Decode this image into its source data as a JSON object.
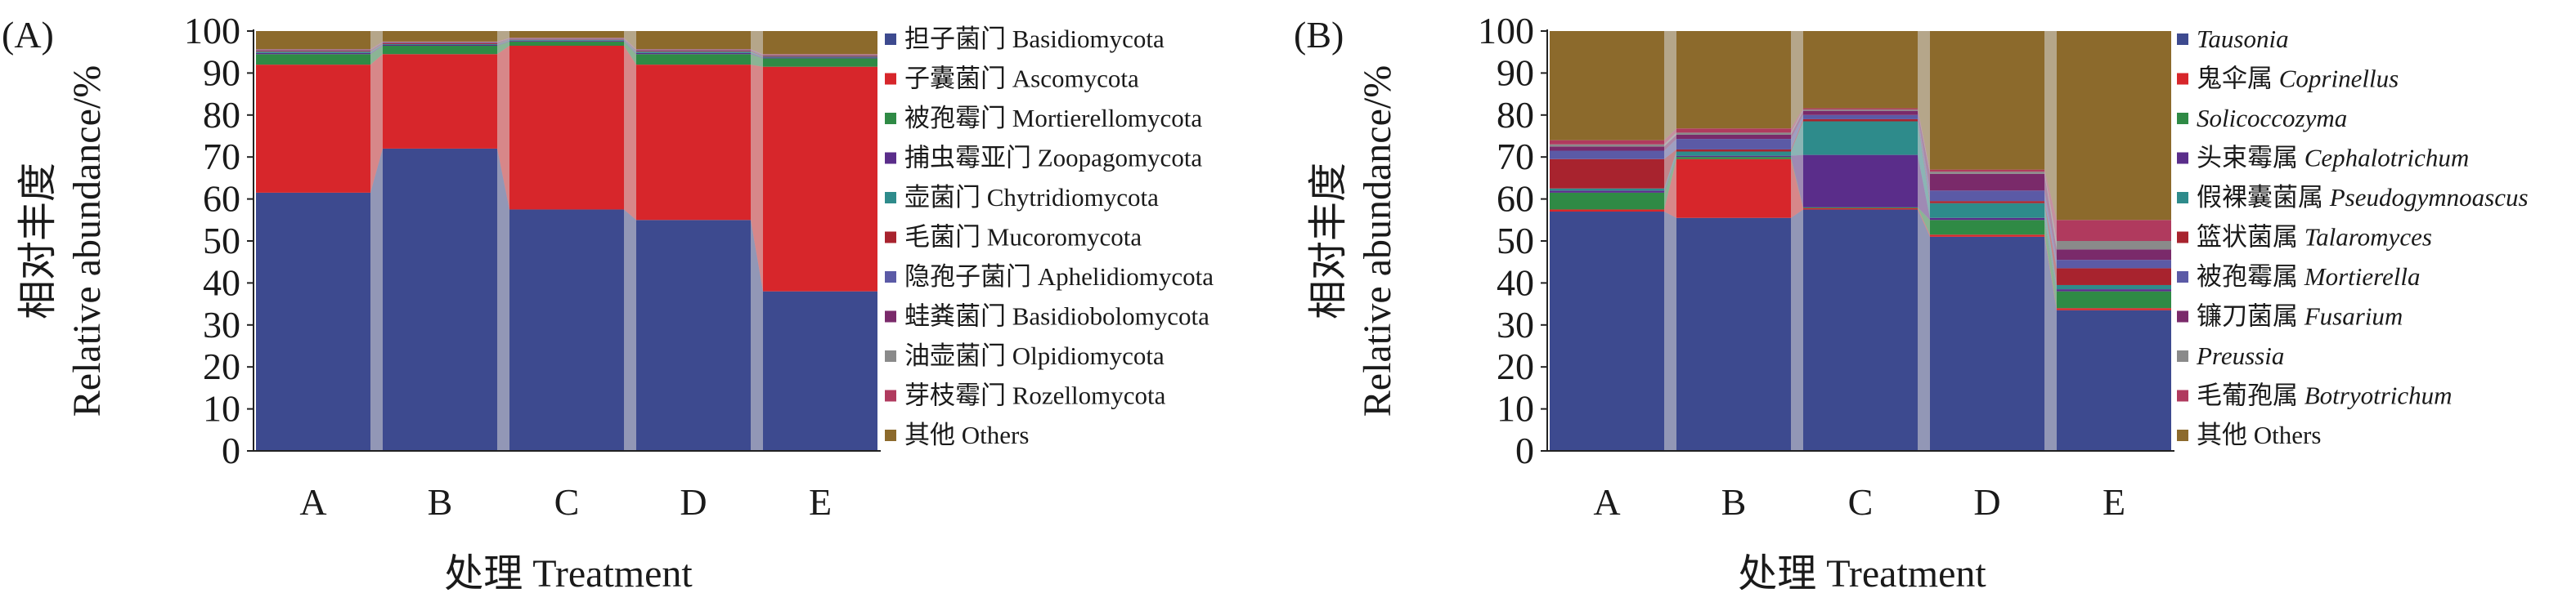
{
  "chart_data": [
    {
      "type": "bar",
      "stacked": true,
      "panel_label": "(A)",
      "title": "",
      "xlabel": "处理 Treatment",
      "ylabel_cn": "相对丰度",
      "ylabel_en": "Relative abundance/%",
      "ylim": [
        0,
        100
      ],
      "yticks": [
        0,
        10,
        20,
        30,
        40,
        50,
        60,
        70,
        80,
        90,
        100
      ],
      "categories": [
        "A",
        "B",
        "C",
        "D",
        "E"
      ],
      "legend_position": "right",
      "series": [
        {
          "cn": "担子菌门",
          "en": "Basidiomycota",
          "italic": false,
          "color": "#3d4a8f",
          "values": [
            61.5,
            72,
            57.5,
            55,
            38
          ]
        },
        {
          "cn": "子囊菌门",
          "en": "Ascomycota",
          "italic": false,
          "color": "#d7262b",
          "values": [
            30.5,
            22.5,
            39,
            37,
            53.5
          ]
        },
        {
          "cn": "被孢霉门",
          "en": "Mortierellomycota",
          "italic": false,
          "color": "#2f8a45",
          "values": [
            2.5,
            2,
            1,
            2.5,
            2
          ]
        },
        {
          "cn": "捕虫霉亚门",
          "en": "Zoopagomycota",
          "italic": false,
          "color": "#5a2d8a",
          "values": [
            0.3,
            0.2,
            0.2,
            0.3,
            0.2
          ]
        },
        {
          "cn": "壶菌门",
          "en": "Chytridiomycota",
          "italic": false,
          "color": "#2e8b8b",
          "values": [
            0.3,
            0.2,
            0.2,
            0.3,
            0.2
          ]
        },
        {
          "cn": "毛菌门",
          "en": "Mucoromycota",
          "italic": false,
          "color": "#a8232e",
          "values": [
            0.2,
            0.2,
            0.1,
            0.2,
            0.2
          ]
        },
        {
          "cn": "隐孢子菌门",
          "en": "Aphelidiomycota",
          "italic": false,
          "color": "#5b5aa6",
          "values": [
            0.1,
            0.1,
            0.1,
            0.1,
            0.1
          ]
        },
        {
          "cn": "蛙粪菌门",
          "en": "Basidiobolomycota",
          "italic": false,
          "color": "#7a2a6a",
          "values": [
            0.1,
            0.1,
            0.1,
            0.1,
            0.1
          ]
        },
        {
          "cn": "油壶菌门",
          "en": "Olpidiomycota",
          "italic": false,
          "color": "#8a8a8a",
          "values": [
            0.1,
            0.1,
            0.1,
            0.1,
            0.1
          ]
        },
        {
          "cn": "芽枝霉门",
          "en": "Rozellomycota",
          "italic": false,
          "color": "#b03a5e",
          "values": [
            0.1,
            0.1,
            0.1,
            0.1,
            0.1
          ]
        },
        {
          "cn": "其他",
          "en": "Others",
          "italic": false,
          "color": "#8c6a2c",
          "values": [
            4.3,
            2.5,
            1.6,
            4.3,
            5.5
          ]
        }
      ]
    },
    {
      "type": "bar",
      "stacked": true,
      "panel_label": "(B)",
      "title": "",
      "xlabel": "处理 Treatment",
      "ylabel_cn": "相对丰度",
      "ylabel_en": "Relative abundance/%",
      "ylim": [
        0,
        100
      ],
      "yticks": [
        0,
        10,
        20,
        30,
        40,
        50,
        60,
        70,
        80,
        90,
        100
      ],
      "categories": [
        "A",
        "B",
        "C",
        "D",
        "E"
      ],
      "legend_position": "right",
      "series": [
        {
          "cn": "",
          "en": "Tausonia",
          "italic": true,
          "color": "#3d4a8f",
          "values": [
            57,
            55.5,
            57.5,
            51,
            33.5
          ]
        },
        {
          "cn": "鬼伞属",
          "en": "Coprinellus",
          "italic": true,
          "color": "#d7262b",
          "values": [
            0.5,
            14,
            0.3,
            0.5,
            0.5
          ]
        },
        {
          "cn": "",
          "en": "Solicoccozyma",
          "italic": true,
          "color": "#2f8a45",
          "values": [
            4,
            0.5,
            0.2,
            3.5,
            4
          ]
        },
        {
          "cn": "头束霉属",
          "en": "Cephalotrichum",
          "italic": true,
          "color": "#5a2d8a",
          "values": [
            0.5,
            0.3,
            12.5,
            0.5,
            0.5
          ]
        },
        {
          "cn": "假裸囊菌属",
          "en": "Pseudogymnoascus",
          "italic": true,
          "color": "#2e8b8b",
          "values": [
            0.5,
            1,
            8,
            3.5,
            1
          ]
        },
        {
          "cn": "篮状菌属",
          "en": "Talaromyces",
          "italic": true,
          "color": "#a8232e",
          "values": [
            7,
            0.5,
            0.5,
            0.5,
            4
          ]
        },
        {
          "cn": "被孢霉属",
          "en": "Mortierella",
          "italic": true,
          "color": "#5b5aa6",
          "values": [
            2,
            2.5,
            1,
            2.5,
            2
          ]
        },
        {
          "cn": "镰刀菌属",
          "en": "Fusarium",
          "italic": true,
          "color": "#7a2a6a",
          "values": [
            1,
            1,
            1,
            4,
            2.5
          ]
        },
        {
          "cn": "",
          "en": "Preussia",
          "italic": true,
          "color": "#8a8a8a",
          "values": [
            0.5,
            0.5,
            0.3,
            0.5,
            2
          ]
        },
        {
          "cn": "毛葡孢属",
          "en": "Botryotrichum",
          "italic": true,
          "color": "#b03a5e",
          "values": [
            1,
            1,
            0.3,
            0.5,
            5
          ]
        },
        {
          "cn": "其他",
          "en": "Others",
          "italic": false,
          "color": "#8c6a2c",
          "values": [
            26,
            23.2,
            18.4,
            33,
            45
          ]
        }
      ]
    }
  ]
}
